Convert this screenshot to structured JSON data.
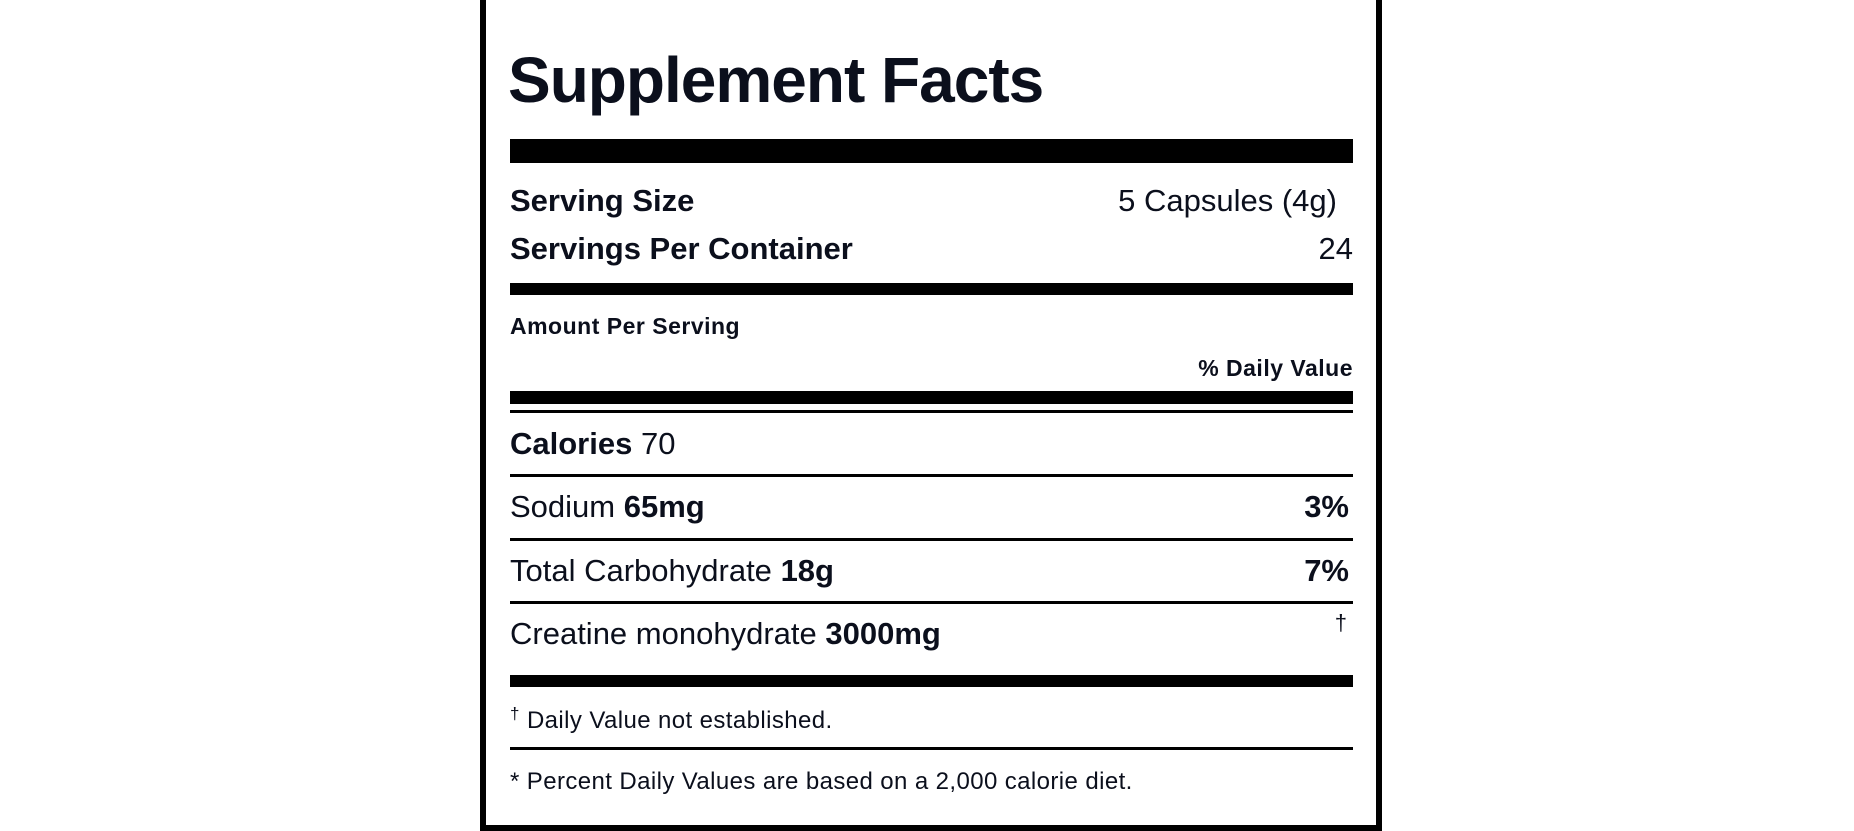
{
  "label": {
    "title": "Supplement Facts",
    "serving_size": {
      "label": "Serving Size",
      "value": "5 Capsules (4g)"
    },
    "servings_per_container": {
      "label": "Servings Per Container",
      "value": "24"
    },
    "amount_per_serving": "Amount Per Serving",
    "daily_value_header": "% Daily Value",
    "rows": [
      {
        "label": "Calories",
        "amount": "70"
      },
      {
        "label": "Sodium",
        "amount": "65mg",
        "daily_value": "3%"
      },
      {
        "label": "Total Carbohydrate",
        "amount": "18g",
        "daily_value": "7%"
      },
      {
        "label": "Creatine monohydrate",
        "amount": "3000mg",
        "daily_value": "†"
      }
    ],
    "footnotes": [
      {
        "mark": "†",
        "text": "Daily Value not established."
      },
      {
        "text": "* Percent Daily Values are based on a 2,000 calorie diet."
      }
    ]
  }
}
